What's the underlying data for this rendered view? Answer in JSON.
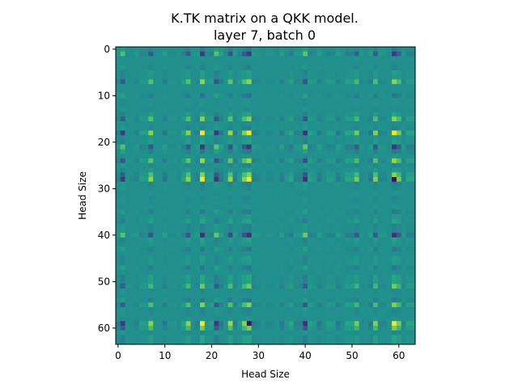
{
  "chart_data": {
    "type": "heatmap",
    "title": "K.TK matrix on a QKK model.",
    "subtitle": "layer 7, batch 0",
    "xlabel": "Head Size",
    "ylabel": "Head Size",
    "size": 64,
    "xlim": [
      -0.5,
      63.5
    ],
    "ylim": [
      63.5,
      -0.5
    ],
    "xticks": [
      0,
      10,
      20,
      30,
      40,
      50,
      60
    ],
    "yticks": [
      0,
      10,
      20,
      30,
      40,
      50,
      60
    ],
    "colormap": "viridis",
    "grid": false,
    "strong_indices": [
      18,
      28,
      59
    ],
    "moderate_indices": [
      1,
      7,
      15,
      21,
      24,
      27,
      40,
      51,
      55,
      60
    ],
    "dark_indices": [
      28,
      59
    ]
  }
}
